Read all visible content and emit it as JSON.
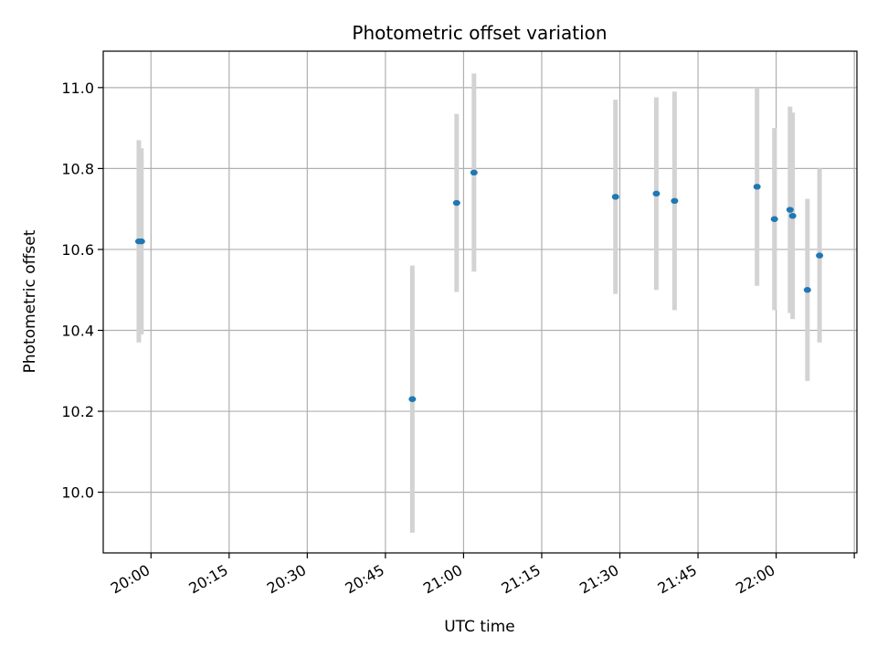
{
  "chart_data": {
    "type": "scatter",
    "title": "Photometric offset variation",
    "xlabel": "UTC time",
    "ylabel": "Photometric offset",
    "x_ticks": [
      "19:45",
      "20:00",
      "20:15",
      "20:30",
      "20:45",
      "21:00",
      "21:15",
      "21:30",
      "21:45",
      "22:00",
      "22:15"
    ],
    "x_tick_labels": [
      "",
      "20:00",
      "20:15",
      "20:30",
      "20:45",
      "21:00",
      "21:15",
      "21:30",
      "21:45",
      "22:00",
      ""
    ],
    "xlim": [
      "19:50:50",
      "22:15:30"
    ],
    "y_ticks": [
      10.0,
      10.2,
      10.4,
      10.6,
      10.8,
      11.0
    ],
    "y_tick_labels": [
      "10.0",
      "10.2",
      "10.4",
      "10.6",
      "10.8",
      "11.0"
    ],
    "ylim": [
      9.85,
      11.09
    ],
    "grid": true,
    "marker_color": "#1f77b4",
    "errorbar_color": "#d3d3d3",
    "series": [
      {
        "points": [
          {
            "time": "19:57:40",
            "y": 10.62,
            "yerr": 0.25
          },
          {
            "time": "19:58:10",
            "y": 10.62,
            "yerr": 0.23
          },
          {
            "time": "20:50:10",
            "y": 10.23,
            "yerr": 0.33
          },
          {
            "time": "20:58:40",
            "y": 10.715,
            "yerr": 0.22
          },
          {
            "time": "21:02:00",
            "y": 10.79,
            "yerr": 0.245
          },
          {
            "time": "21:29:10",
            "y": 10.73,
            "yerr": 0.24
          },
          {
            "time": "21:37:00",
            "y": 10.738,
            "yerr": 0.238
          },
          {
            "time": "21:40:30",
            "y": 10.72,
            "yerr": 0.27
          },
          {
            "time": "21:56:20",
            "y": 10.755,
            "yerr": 0.245
          },
          {
            "time": "21:59:40",
            "y": 10.675,
            "yerr": 0.225
          },
          {
            "time": "22:02:40",
            "y": 10.698,
            "yerr": 0.255
          },
          {
            "time": "22:03:10",
            "y": 10.683,
            "yerr": 0.255
          },
          {
            "time": "22:06:00",
            "y": 10.5,
            "yerr": 0.225
          },
          {
            "time": "22:08:20",
            "y": 10.585,
            "yerr": 0.215
          }
        ]
      }
    ]
  }
}
